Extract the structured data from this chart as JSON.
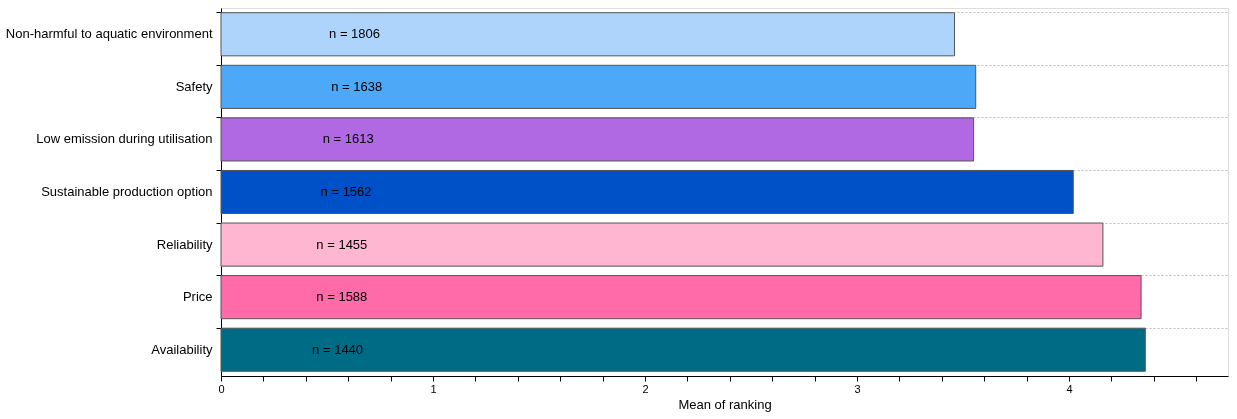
{
  "chart_data": {
    "type": "bar",
    "orientation": "horizontal",
    "xlabel": "Mean of ranking",
    "categories": [
      "Non-harmful to aquatic environment",
      "Safety",
      "Low emission during utilisation",
      "Sustainable production option",
      "Reliability",
      "Price",
      "Availability"
    ],
    "values": [
      3.46,
      3.56,
      3.55,
      4.02,
      4.16,
      4.34,
      4.36
    ],
    "colors": [
      "#aed4fc",
      "#4da9f8",
      "#b068e3",
      "#0050c8",
      "#ffb6d1",
      "#ff6aa8",
      "#006b85"
    ],
    "xlim": [
      0,
      4.75
    ],
    "xticks": [
      0,
      {
        "value": 0.2,
        "label": null
      },
      {
        "value": 0.4,
        "label": null
      },
      {
        "value": 0.6,
        "label": null
      },
      {
        "value": 0.8,
        "label": null
      },
      1,
      {
        "value": 1.2,
        "label": null
      },
      {
        "value": 1.4,
        "label": null
      },
      {
        "value": 1.6,
        "label": null
      },
      {
        "value": 1.8,
        "label": null
      },
      2,
      {
        "value": 2.2,
        "label": null
      },
      {
        "value": 2.4,
        "label": null
      },
      {
        "value": 2.6,
        "label": null
      },
      {
        "value": 2.8,
        "label": null
      },
      3,
      {
        "value": 3.2,
        "label": null
      },
      {
        "value": 3.4,
        "label": null
      },
      {
        "value": 3.6,
        "label": null
      },
      {
        "value": 3.8,
        "label": null
      },
      4,
      {
        "value": 4.2,
        "label": null
      },
      {
        "value": 4.4,
        "label": null
      },
      {
        "value": 4.6,
        "label": null
      }
    ],
    "grid": "y",
    "annotations": [
      {
        "text": "n = 1806",
        "x": 0.63,
        "y": "Non-harmful to aquatic environment"
      },
      {
        "text": "n = 1638",
        "x": 0.64,
        "y": "Safety"
      },
      {
        "text": "n = 1613",
        "x": 0.6,
        "y": "Low emission during utilisation"
      },
      {
        "text": "n = 1562",
        "x": 0.59,
        "y": "Sustainable production option"
      },
      {
        "text": "n = 1455",
        "x": 0.57,
        "y": "Reliability"
      },
      {
        "text": "n = 1588",
        "x": 0.57,
        "y": "Price"
      },
      {
        "text": "n = 1440",
        "x": 0.55,
        "y": "Availability"
      }
    ]
  }
}
